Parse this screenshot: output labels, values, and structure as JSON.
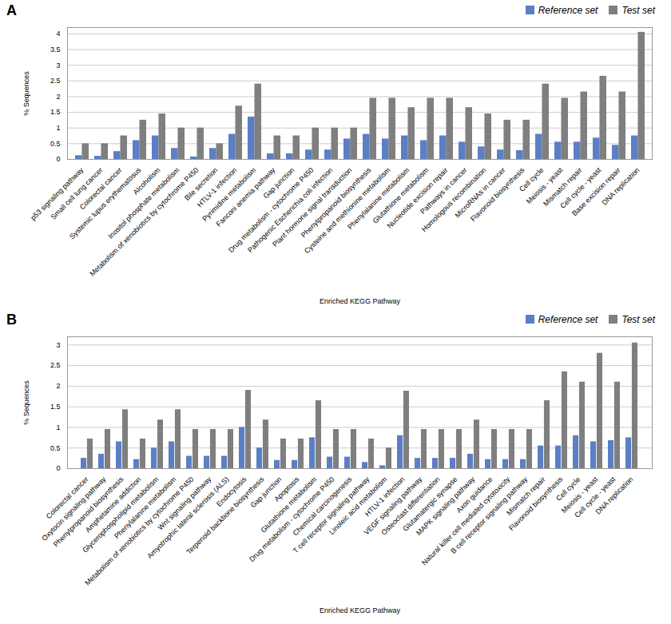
{
  "chart_data": [
    {
      "type": "bar",
      "title": "A",
      "categories": [
        "p53 signaling pathway",
        "Small cell lung cancer",
        "Colorectal cancer",
        "Systemic lupus erythematosus",
        "Alcoholism",
        "Inositol phosphate metabolism",
        "Metabolism of xenobiotics by cytochrome P450",
        "Bile secretion",
        "HTLV-1 infection",
        "Pyrimidine metabolism",
        "Fanconi anemia pathway",
        "Gap junction",
        "Drug metabolism - cytochrome P450",
        "Pathogenic Escherichia coli infection",
        "Plant hormone signal transduction",
        "Phenylpropanoid biosynthesis",
        "Cysteine and methionine metabolism",
        "Phenylalanine metabolism",
        "Glutathione metabolism",
        "Nucleotide excision repair",
        "Pathways in cancer",
        "Homologous recombination",
        "MicroRNAs in cancer",
        "Flavonoid biosynthesis",
        "Cell cycle",
        "Meiosis - yeast",
        "Mismatch repair",
        "Cell cycle - yeast",
        "Base excision repair",
        "DNA replication"
      ],
      "series": [
        {
          "name": "Reference set",
          "color": "#5B7FC5",
          "values": [
            0.12,
            0.1,
            0.25,
            0.6,
            0.75,
            0.35,
            0.08,
            0.35,
            0.8,
            1.35,
            0.18,
            0.18,
            0.3,
            0.3,
            0.65,
            0.8,
            0.65,
            0.75,
            0.6,
            0.75,
            0.55,
            0.4,
            0.3,
            0.28,
            0.8,
            0.55,
            0.55,
            0.68,
            0.45,
            0.75
          ]
        },
        {
          "name": "Test set",
          "color": "#7F7F7F",
          "values": [
            0.5,
            0.5,
            0.75,
            1.25,
            1.45,
            1.0,
            1.0,
            0.5,
            1.7,
            2.4,
            0.75,
            0.75,
            1.0,
            1.0,
            1.0,
            1.95,
            1.95,
            1.65,
            1.95,
            1.95,
            1.65,
            1.45,
            1.25,
            1.25,
            2.4,
            1.95,
            2.15,
            2.65,
            2.15,
            4.05
          ]
        }
      ],
      "xlabel": "Enriched KEGG Pathway",
      "ylabel": "% Sequences",
      "ylim": [
        0,
        4.2
      ],
      "yticks": [
        0,
        0.5,
        1,
        1.5,
        2,
        2.5,
        3,
        3.5,
        4
      ],
      "grid": true,
      "legend": "upper right"
    },
    {
      "type": "bar",
      "title": "B",
      "categories": [
        "Colorectal cancer",
        "Oxytocin signaling pathway",
        "Phenylpropanoid biosynthesis",
        "Amphetamine addiction",
        "Glycerophospholipid metabolism",
        "Phenylalanine metabolism",
        "Metabolism of xenobiotics by cytochrome P450",
        "Wnt signaling pathway",
        "Amyotrophic lateral sclerosis (ALS)",
        "Endocytosis",
        "Terpenoid backbone biosynthesis",
        "Gap junction",
        "Apoptosis",
        "Glutathione metabolism",
        "Drug metabolism - cytochrome P450",
        "Chemical carcinogenesis",
        "T cell receptor signaling pathway",
        "Linoleic acid metabolism",
        "HTLV-1 infection",
        "VEGF signaling pathway",
        "Osteoclast differentiation",
        "Glutamatergic synapse",
        "MAPK signaling pathway",
        "Axon guidance",
        "Natural killer cell mediated cytotoxicity",
        "B cell receptor signaling pathway",
        "Mismatch repair",
        "Flavonoid biosynthesis",
        "Cell cycle",
        "Meiosis - yeast",
        "Cell cycle - yeast",
        "DNA replication"
      ],
      "series": [
        {
          "name": "Reference set",
          "color": "#5B7FC5",
          "values": [
            0.25,
            0.35,
            0.65,
            0.22,
            0.5,
            0.65,
            0.3,
            0.3,
            0.3,
            1.0,
            0.5,
            0.2,
            0.2,
            0.75,
            0.28,
            0.28,
            0.15,
            0.07,
            0.8,
            0.25,
            0.25,
            0.25,
            0.35,
            0.22,
            0.22,
            0.22,
            0.55,
            0.55,
            0.8,
            0.65,
            0.68,
            0.75
          ]
        },
        {
          "name": "Test set",
          "color": "#7F7F7F",
          "values": [
            0.72,
            0.95,
            1.43,
            0.72,
            1.18,
            1.43,
            0.95,
            0.95,
            0.95,
            1.9,
            1.18,
            0.72,
            0.72,
            1.65,
            0.95,
            0.95,
            0.72,
            0.5,
            1.88,
            0.95,
            0.95,
            0.95,
            1.18,
            0.95,
            0.95,
            0.95,
            1.65,
            2.35,
            2.1,
            2.8,
            2.1,
            3.05
          ]
        }
      ],
      "xlabel": "Enriched KEGG Pathway",
      "ylabel": "% Sequences",
      "ylim": [
        0,
        3.2
      ],
      "yticks": [
        0,
        0.5,
        1,
        1.5,
        2,
        2.5,
        3
      ],
      "grid": true,
      "legend": "upper right"
    }
  ]
}
